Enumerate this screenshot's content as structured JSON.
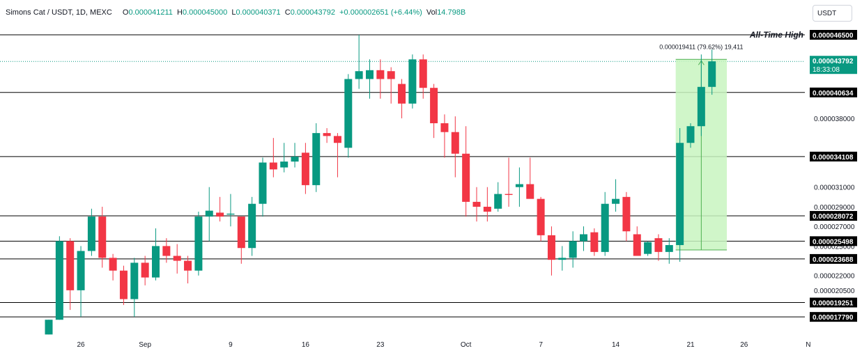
{
  "legend": {
    "symbol": "Simons Cat / USDT, 1D, MEXC",
    "open_label": "O",
    "open": "0.000041211",
    "high_label": "H",
    "high": "0.000045000",
    "low_label": "L",
    "low": "0.000040371",
    "close_label": "C",
    "close": "0.000043792",
    "change": "+0.000002651 (+6.44%)",
    "volume_label": "Vol",
    "volume": "14.798B"
  },
  "currency_button": "USDT",
  "colors": {
    "up": "#089981",
    "down": "#f23645",
    "measure_fill": "#c8f5bf",
    "measure_line": "#4caf50",
    "grid_line": "#000000",
    "price_tag": "#089981"
  },
  "chart_data": {
    "type": "candlestick",
    "ylim": [
      1.6e-05,
      4.8e-05
    ],
    "x_ticks": [
      {
        "index": 3,
        "label": "26"
      },
      {
        "index": 9,
        "label": "Sep"
      },
      {
        "index": 17,
        "label": "9"
      },
      {
        "index": 24,
        "label": "16"
      },
      {
        "index": 31,
        "label": "23"
      },
      {
        "index": 39,
        "label": "Oct"
      },
      {
        "index": 46,
        "label": "7"
      },
      {
        "index": 53,
        "label": "14"
      },
      {
        "index": 60,
        "label": "21"
      },
      {
        "index": 65,
        "label": "26"
      },
      {
        "index": 71,
        "label": "N"
      }
    ],
    "price_scale_labels": [
      "0.000038000",
      "0.000031000",
      "0.000029000",
      "0.000027000",
      "0.000025000",
      "0.000022000",
      "0.000020500"
    ],
    "support_resistance_levels": [
      "0.000046500",
      "0.000040634",
      "0.000034108",
      "0.000028072",
      "0.000025498",
      "0.000023688",
      "0.000019251",
      "0.000017790"
    ],
    "all_time_high_label": "All-Time High",
    "all_time_high_level": "0.000046500",
    "current_price": "0.000043792",
    "countdown": "18:33:08",
    "measure": {
      "label": "0.000019411 (79.62%) 19,411",
      "from_index": 59,
      "to_index": 63,
      "from_price": 2.46e-05,
      "to_price": 4.4e-05
    },
    "candles": [
      {
        "o": 1.6e-05,
        "h": 1.75e-05,
        "l": 1.6e-05,
        "c": 1.75e-05
      },
      {
        "o": 1.75e-05,
        "h": 2.6e-05,
        "l": 1.75e-05,
        "c": 2.55e-05
      },
      {
        "o": 2.55e-05,
        "h": 2.58e-05,
        "l": 1.85e-05,
        "c": 2.05e-05
      },
      {
        "o": 2.05e-05,
        "h": 2.5e-05,
        "l": 1.78e-05,
        "c": 2.45e-05
      },
      {
        "o": 2.45e-05,
        "h": 2.88e-05,
        "l": 2.4e-05,
        "c": 2.8e-05
      },
      {
        "o": 2.8e-05,
        "h": 2.9e-05,
        "l": 2.28e-05,
        "c": 2.38e-05
      },
      {
        "o": 2.38e-05,
        "h": 2.42e-05,
        "l": 2.15e-05,
        "c": 2.25e-05
      },
      {
        "o": 2.25e-05,
        "h": 2.3e-05,
        "l": 1.9e-05,
        "c": 1.96e-05
      },
      {
        "o": 1.96e-05,
        "h": 2.38e-05,
        "l": 1.78e-05,
        "c": 2.33e-05
      },
      {
        "o": 2.33e-05,
        "h": 2.4e-05,
        "l": 2.1e-05,
        "c": 2.18e-05
      },
      {
        "o": 2.18e-05,
        "h": 2.68e-05,
        "l": 2.15e-05,
        "c": 2.5e-05
      },
      {
        "o": 2.5e-05,
        "h": 2.58e-05,
        "l": 2.33e-05,
        "c": 2.4e-05
      },
      {
        "o": 2.4e-05,
        "h": 2.52e-05,
        "l": 2.22e-05,
        "c": 2.35e-05
      },
      {
        "o": 2.35e-05,
        "h": 2.4e-05,
        "l": 2.12e-05,
        "c": 2.25e-05
      },
      {
        "o": 2.25e-05,
        "h": 2.85e-05,
        "l": 2.2e-05,
        "c": 2.8e-05
      },
      {
        "o": 2.8e-05,
        "h": 3.1e-05,
        "l": 2.55e-05,
        "c": 2.86e-05
      },
      {
        "o": 2.84e-05,
        "h": 3e-05,
        "l": 2.75e-05,
        "c": 2.8e-05
      },
      {
        "o": 2.82e-05,
        "h": 3.03e-05,
        "l": 2.7e-05,
        "c": 2.83e-05
      },
      {
        "o": 2.8e-05,
        "h": 2.8e-05,
        "l": 2.32e-05,
        "c": 2.48e-05
      },
      {
        "o": 2.48e-05,
        "h": 3e-05,
        "l": 2.4e-05,
        "c": 2.93e-05
      },
      {
        "o": 2.93e-05,
        "h": 3.4e-05,
        "l": 2.8e-05,
        "c": 3.35e-05
      },
      {
        "o": 3.35e-05,
        "h": 3.6e-05,
        "l": 3.2e-05,
        "c": 3.28e-05
      },
      {
        "o": 3.3e-05,
        "h": 3.55e-05,
        "l": 3.25e-05,
        "c": 3.36e-05
      },
      {
        "o": 3.36e-05,
        "h": 3.55e-05,
        "l": 3.3e-05,
        "c": 3.41e-05
      },
      {
        "o": 3.45e-05,
        "h": 3.55e-05,
        "l": 3.03e-05,
        "c": 3.12e-05
      },
      {
        "o": 3.12e-05,
        "h": 3.75e-05,
        "l": 3.05e-05,
        "c": 3.65e-05
      },
      {
        "o": 3.65e-05,
        "h": 3.7e-05,
        "l": 3.55e-05,
        "c": 3.62e-05
      },
      {
        "o": 3.62e-05,
        "h": 3.65e-05,
        "l": 3.2e-05,
        "c": 3.55e-05
      },
      {
        "o": 3.5e-05,
        "h": 4.25e-05,
        "l": 3.4e-05,
        "c": 4.2e-05
      },
      {
        "o": 4.2e-05,
        "h": 4.65e-05,
        "l": 4.1e-05,
        "c": 4.28e-05
      },
      {
        "o": 4.2e-05,
        "h": 4.4e-05,
        "l": 4e-05,
        "c": 4.29e-05
      },
      {
        "o": 4.29e-05,
        "h": 4.4e-05,
        "l": 4e-05,
        "c": 4.2e-05
      },
      {
        "o": 4.28e-05,
        "h": 4.32e-05,
        "l": 3.95e-05,
        "c": 4.2e-05
      },
      {
        "o": 4.15e-05,
        "h": 4.2e-05,
        "l": 3.8e-05,
        "c": 3.95e-05
      },
      {
        "o": 3.95e-05,
        "h": 4.45e-05,
        "l": 3.9e-05,
        "c": 4.4e-05
      },
      {
        "o": 4.4e-05,
        "h": 4.45e-05,
        "l": 4e-05,
        "c": 4.11e-05
      },
      {
        "o": 4.11e-05,
        "h": 4.15e-05,
        "l": 3.6e-05,
        "c": 3.75e-05
      },
      {
        "o": 3.75e-05,
        "h": 3.84e-05,
        "l": 3.4e-05,
        "c": 3.66e-05
      },
      {
        "o": 3.66e-05,
        "h": 3.82e-05,
        "l": 3.2e-05,
        "c": 3.44e-05
      },
      {
        "o": 3.44e-05,
        "h": 3.72e-05,
        "l": 2.8e-05,
        "c": 2.95e-05
      },
      {
        "o": 2.95e-05,
        "h": 3.1e-05,
        "l": 2.75e-05,
        "c": 2.9e-05
      },
      {
        "o": 2.9e-05,
        "h": 3.1e-05,
        "l": 2.75e-05,
        "c": 2.85e-05
      },
      {
        "o": 2.88e-05,
        "h": 3.15e-05,
        "l": 2.85e-05,
        "c": 3.03e-05
      },
      {
        "o": 3.03e-05,
        "h": 3.4e-05,
        "l": 2.9e-05,
        "c": 3.02e-05
      },
      {
        "o": 3.1e-05,
        "h": 3.3e-05,
        "l": 2.9e-05,
        "c": 3.13e-05
      },
      {
        "o": 3.13e-05,
        "h": 3.4e-05,
        "l": 3e-05,
        "c": 2.98e-05
      },
      {
        "o": 2.98e-05,
        "h": 3e-05,
        "l": 2.55e-05,
        "c": 2.61e-05
      },
      {
        "o": 2.61e-05,
        "h": 2.7e-05,
        "l": 2.2e-05,
        "c": 2.36e-05
      },
      {
        "o": 2.36e-05,
        "h": 2.5e-05,
        "l": 2.25e-05,
        "c": 2.38e-05
      },
      {
        "o": 2.38e-05,
        "h": 2.65e-05,
        "l": 2.28e-05,
        "c": 2.55e-05
      },
      {
        "o": 2.55e-05,
        "h": 2.7e-05,
        "l": 2.45e-05,
        "c": 2.62e-05
      },
      {
        "o": 2.64e-05,
        "h": 2.68e-05,
        "l": 2.4e-05,
        "c": 2.44e-05
      },
      {
        "o": 2.44e-05,
        "h": 3.05e-05,
        "l": 2.4e-05,
        "c": 2.93e-05
      },
      {
        "o": 2.93e-05,
        "h": 3.18e-05,
        "l": 2.85e-05,
        "c": 2.98e-05
      },
      {
        "o": 3e-05,
        "h": 3.05e-05,
        "l": 2.55e-05,
        "c": 2.65e-05
      },
      {
        "o": 2.62e-05,
        "h": 2.7e-05,
        "l": 2.4e-05,
        "c": 2.4e-05
      },
      {
        "o": 2.42e-05,
        "h": 2.55e-05,
        "l": 2.4e-05,
        "c": 2.54e-05
      },
      {
        "o": 2.58e-05,
        "h": 2.62e-05,
        "l": 2.35e-05,
        "c": 2.44e-05
      },
      {
        "o": 2.44e-05,
        "h": 2.58e-05,
        "l": 2.32e-05,
        "c": 2.51e-05
      },
      {
        "o": 2.51e-05,
        "h": 3.7e-05,
        "l": 2.34e-05,
        "c": 3.55e-05
      },
      {
        "o": 3.55e-05,
        "h": 3.75e-05,
        "l": 3.5e-05,
        "c": 3.72e-05
      },
      {
        "o": 3.72e-05,
        "h": 4.45e-05,
        "l": 3.62e-05,
        "c": 4.12e-05
      },
      {
        "o": 4.12e-05,
        "h": 4.5e-05,
        "l": 4.04e-05,
        "c": 4.38e-05
      }
    ]
  }
}
